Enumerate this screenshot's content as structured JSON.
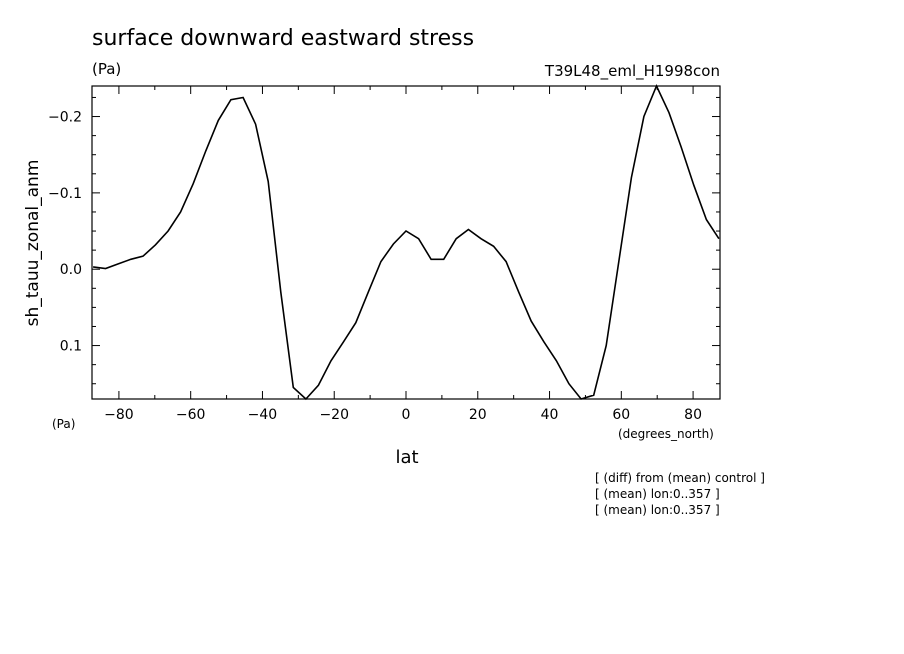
{
  "chart_data": {
    "type": "line",
    "title": "surface downward eastward stress",
    "units": "(Pa)",
    "dataset": "T39L48_eml_H1998con",
    "ylabel": "sh_tauu_zonal_anm",
    "yunits": "(Pa)",
    "xlabel": "lat",
    "xunits": "(degrees_north)",
    "xlim": [
      -87.5,
      87.5
    ],
    "ylim": [
      0.17,
      -0.24
    ],
    "y_inverted": true,
    "xticks": [
      -80,
      -60,
      -40,
      -20,
      0,
      20,
      40,
      60,
      80
    ],
    "xtick_labels": [
      "−80",
      "−60",
      "−40",
      "−20",
      "0",
      "20",
      "40",
      "60",
      "80"
    ],
    "yticks": [
      -0.2,
      -0.1,
      0.0,
      0.1
    ],
    "ytick_labels": [
      "−0.2",
      "−0.1",
      "0.0",
      "0.1"
    ],
    "series": [
      {
        "x": [
          -87.2,
          -83.7,
          -80.2,
          -76.7,
          -73.3,
          -69.8,
          -66.3,
          -62.8,
          -59.3,
          -55.8,
          -52.3,
          -48.8,
          -45.4,
          -41.9,
          -38.4,
          -34.9,
          -31.4,
          -27.9,
          -24.4,
          -20.9,
          -17.4,
          -14.0,
          -10.5,
          -7.0,
          -3.5,
          0.0,
          3.5,
          7.0,
          10.5,
          14.0,
          17.4,
          20.9,
          24.4,
          27.9,
          31.4,
          34.9,
          38.4,
          41.9,
          45.4,
          48.8,
          52.3,
          55.8,
          59.3,
          62.8,
          66.3,
          69.8,
          73.3,
          76.7,
          80.2,
          83.7,
          87.2
        ],
        "y": [
          -0.003,
          -0.001,
          -0.007,
          -0.013,
          -0.017,
          -0.032,
          -0.05,
          -0.075,
          -0.112,
          -0.155,
          -0.195,
          -0.222,
          -0.225,
          -0.19,
          -0.115,
          0.03,
          0.155,
          0.17,
          0.152,
          0.12,
          0.095,
          0.07,
          0.03,
          -0.01,
          -0.033,
          -0.05,
          -0.04,
          -0.013,
          -0.013,
          -0.04,
          -0.052,
          -0.04,
          -0.03,
          -0.01,
          0.03,
          0.068,
          0.095,
          0.12,
          0.15,
          0.172,
          0.165,
          0.1,
          -0.01,
          -0.12,
          -0.2,
          -0.245,
          -0.205,
          -0.16,
          -0.11,
          -0.065,
          -0.04
        ]
      }
    ],
    "notes": [
      "[ (diff) from (mean) control ]",
      "[ (mean) lon:0..357 ]",
      "[ (mean) lon:0..357 ]"
    ]
  }
}
